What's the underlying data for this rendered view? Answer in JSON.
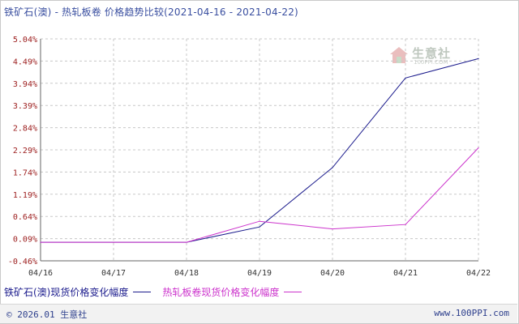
{
  "title": "铁矿石(澳) - 热轧板卷 价格趋势比较(2021-04-16 - 2021-04-22)",
  "watermark": {
    "name": "生意社",
    "site": "100PPI.COM"
  },
  "footer": {
    "copyright": "© 2026.01 生意社",
    "site": "www.100PPI.com"
  },
  "colors": {
    "series1": "#1a1a8c",
    "series2": "#cc33cc",
    "grid": "#c8c8c8",
    "axis": "#666666",
    "ticktext": "#9b1b1b",
    "xtick": "#333333"
  },
  "chart_data": {
    "type": "line",
    "x": [
      "04/16",
      "04/17",
      "04/18",
      "04/19",
      "04/20",
      "04/21",
      "04/22"
    ],
    "yticks": [
      "5.04%",
      "4.49%",
      "3.94%",
      "3.39%",
      "2.84%",
      "2.29%",
      "1.74%",
      "1.19%",
      "0.64%",
      "0.09%",
      "-0.46%"
    ],
    "ylim": [
      -0.46,
      5.04
    ],
    "grid": true,
    "legend_position": "bottom",
    "series": [
      {
        "name": "铁矿石(澳)现货价格变化幅度",
        "values": [
          0,
          0,
          0,
          0.38,
          1.85,
          4.07,
          4.55
        ]
      },
      {
        "name": "热轧板卷现货价格变化幅度",
        "values": [
          0,
          0,
          0,
          0.52,
          0.33,
          0.44,
          2.34
        ]
      }
    ]
  }
}
